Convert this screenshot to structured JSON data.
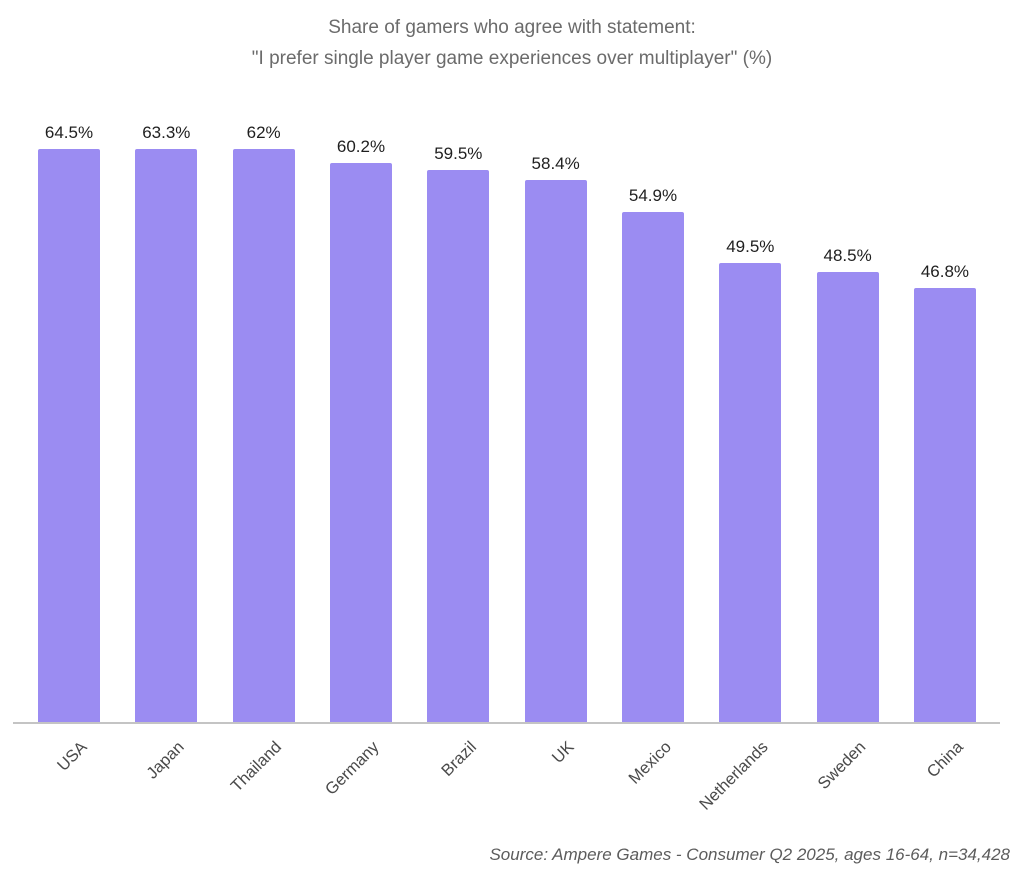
{
  "header": {
    "title_line1": "Share of gamers who agree with statement:",
    "title_line2": "\"I prefer single player game experiences over multiplayer\" (%)"
  },
  "footer": {
    "source": "Source: Ampere Games - Consumer Q2 2025, ages 16-64, n=34,428"
  },
  "colors": {
    "bar": "#9b8cf2",
    "title_text": "#6b6b6b",
    "value_label_text": "#1f1f1f",
    "category_label_text": "#4a4a4a",
    "axis_line": "#c4c4c4",
    "source_text": "#5c5c5c",
    "background": "#ffffff"
  },
  "chart_data": {
    "type": "bar",
    "title": "Share of gamers who agree with statement: \"I prefer single player game experiences over multiplayer\" (%)",
    "categories": [
      "USA",
      "Japan",
      "Thailand",
      "Germany",
      "Brazil",
      "UK",
      "Mexico",
      "Netherlands",
      "Sweden",
      "China"
    ],
    "values": [
      64.5,
      63.3,
      62,
      60.2,
      59.5,
      58.4,
      54.9,
      49.5,
      48.5,
      46.8
    ],
    "value_labels": [
      "64.5%",
      "63.3%",
      "62%",
      "60.2%",
      "59.5%",
      "58.4%",
      "54.9%",
      "49.5%",
      "48.5%",
      "46.8%"
    ],
    "xlabel": "",
    "ylabel": "",
    "ylim": [
      0,
      67
    ],
    "grid": false,
    "y_axis_visible": false,
    "value_labels_position": "above-bar",
    "x_tick_rotation_deg": 45,
    "legend": "none",
    "source": "Source: Ampere Games - Consumer Q2 2025, ages 16-64, n=34,428"
  }
}
